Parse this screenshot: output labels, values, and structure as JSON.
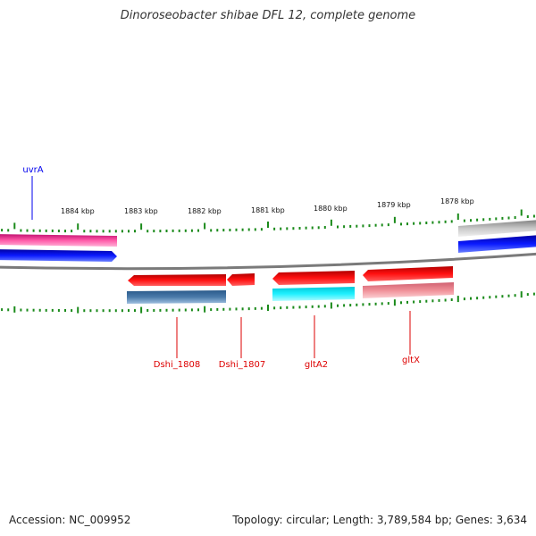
{
  "title": "Dinoroseobacter shibae DFL 12, complete genome",
  "footer": {
    "accession": "Accession: NC_009952",
    "summary": "Topology: circular; Length: 3,789,584 bp; Genes: 3,634"
  },
  "scale_labels": [
    "1884 kbp",
    "1883 kbp",
    "1882 kbp",
    "1881 kbp",
    "1880 kbp",
    "1879 kbp",
    "1878 kbp"
  ],
  "gene_labels": {
    "uvrA": "uvrA",
    "dshi1808": "Dshi_1808",
    "dshi1807": "Dshi_1807",
    "gltA2": "gltA2",
    "gltX": "gltX"
  },
  "colors": {
    "forward_label": "#0000ee",
    "reverse_label": "#dd0000",
    "tick": "#1a8a1a",
    "backbone": "#808080"
  }
}
